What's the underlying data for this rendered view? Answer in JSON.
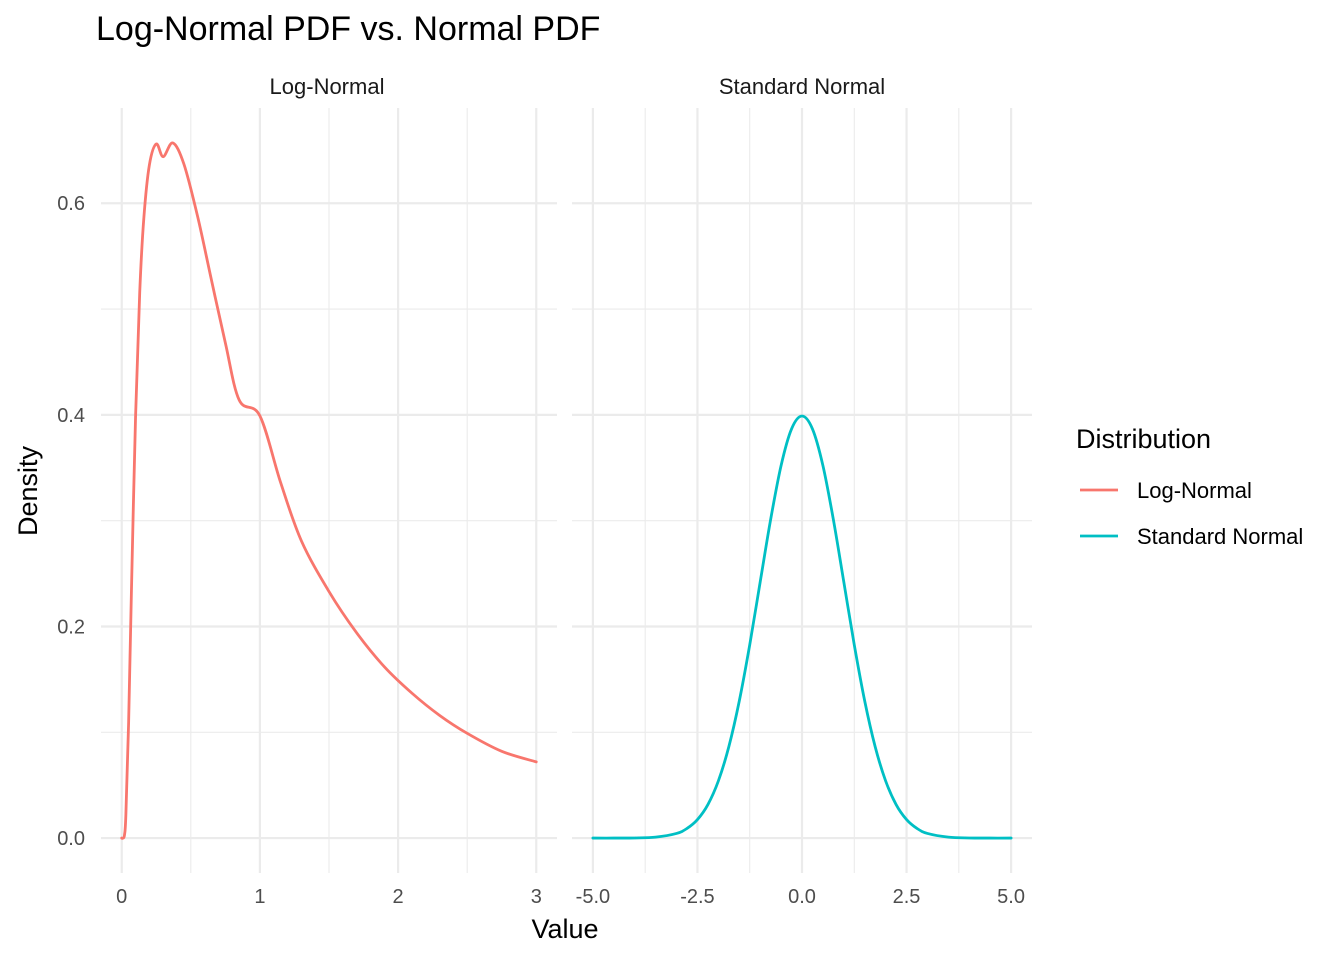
{
  "chart_data": {
    "type": "line",
    "title": "Log-Normal PDF vs. Normal PDF",
    "xlabel": "Value",
    "ylabel": "Density",
    "grid": true,
    "legend": {
      "title": "Distribution",
      "placement": "right",
      "entries": [
        {
          "label": "Log-Normal",
          "color": "#F8766D"
        },
        {
          "label": "Standard Normal",
          "color": "#00BFC4"
        }
      ]
    },
    "ylim": [
      -0.033,
      0.69
    ],
    "y_ticks": [
      0.0,
      0.2,
      0.4,
      0.6
    ],
    "y_tick_labels": [
      "0.0",
      "0.2",
      "0.4",
      "0.6"
    ],
    "panels": [
      {
        "strip_label": "Log-Normal",
        "series_name": "Log-Normal",
        "color": "#F8766D",
        "xlim": [
          -0.15,
          3.15
        ],
        "x_ticks": [
          0,
          1,
          2,
          3
        ],
        "x_tick_labels": [
          "0",
          "1",
          "2",
          "3"
        ],
        "x": [
          0.0,
          0.01,
          0.02,
          0.03,
          0.05,
          0.07,
          0.1,
          0.13,
          0.16,
          0.2,
          0.25,
          0.3,
          0.37,
          0.45,
          0.55,
          0.65,
          0.75,
          0.85,
          1.0,
          1.15,
          1.3,
          1.5,
          1.7,
          1.9,
          2.1,
          2.3,
          2.5,
          2.75,
          3.0
        ],
        "y": [
          0.0,
          0.0,
          0.003,
          0.022,
          0.11,
          0.232,
          0.398,
          0.515,
          0.586,
          0.636,
          0.656,
          0.644,
          0.657,
          0.637,
          0.587,
          0.527,
          0.468,
          0.414,
          0.399,
          0.336,
          0.281,
          0.233,
          0.194,
          0.162,
          0.137,
          0.116,
          0.099,
          0.082,
          0.072
        ]
      },
      {
        "strip_label": "Standard Normal",
        "series_name": "Standard Normal",
        "color": "#00BFC4",
        "xlim": [
          -5.5,
          5.5
        ],
        "x_ticks": [
          -5.0,
          -2.5,
          0.0,
          2.5,
          5.0
        ],
        "x_tick_labels": [
          "-5.0",
          "-2.5",
          "0.0",
          "2.5",
          "5.0"
        ],
        "x": [
          -5.0,
          -4.5,
          -4.0,
          -3.5,
          -3.0,
          -2.75,
          -2.5,
          -2.25,
          -2.0,
          -1.75,
          -1.5,
          -1.25,
          -1.0,
          -0.75,
          -0.5,
          -0.25,
          0.0,
          0.25,
          0.5,
          0.75,
          1.0,
          1.25,
          1.5,
          1.75,
          2.0,
          2.25,
          2.5,
          2.75,
          3.0,
          3.5,
          4.0,
          4.5,
          5.0
        ],
        "y": [
          0.0,
          0.0,
          0.0001,
          0.0009,
          0.0044,
          0.0091,
          0.0175,
          0.0317,
          0.054,
          0.0863,
          0.1295,
          0.1826,
          0.242,
          0.3011,
          0.3521,
          0.3867,
          0.3989,
          0.3867,
          0.3521,
          0.3011,
          0.242,
          0.1826,
          0.1295,
          0.0863,
          0.054,
          0.0317,
          0.0175,
          0.0091,
          0.0044,
          0.0009,
          0.0001,
          0.0,
          0.0
        ]
      }
    ]
  }
}
